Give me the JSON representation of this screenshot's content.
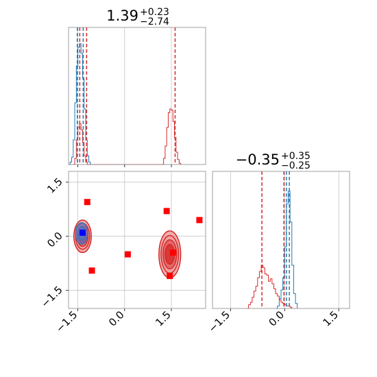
{
  "figure": {
    "type": "corner-plot",
    "colors": {
      "red": "#d62728",
      "blue": "#1f77b4",
      "marker_red": "#ff0000",
      "marker_blue": "#0000ff",
      "contour_fill_outer": "#f0a0a0",
      "contour_fill_mid": "#e06060",
      "contour_fill_inner": "#d83030",
      "blue_fill": "#6070c0",
      "grid": "#b0b0b0"
    }
  },
  "chart_data": [
    {
      "panel": "top-left",
      "type": "histogram",
      "title": {
        "value": "1.39",
        "upper": "+0.23",
        "lower": "−2.74"
      },
      "xlim": [
        -1.8,
        2.6
      ],
      "ticks": [
        -1.5,
        0.0,
        1.5
      ],
      "grid": true,
      "series": [
        {
          "color": "#1f77b4",
          "points": [
            [
              -1.8,
              0
            ],
            [
              -1.75,
              0.02
            ],
            [
              -1.7,
              0.06
            ],
            [
              -1.65,
              0.2
            ],
            [
              -1.6,
              0.5
            ],
            [
              -1.55,
              0.8
            ],
            [
              -1.5,
              0.95
            ],
            [
              -1.45,
              0.98
            ],
            [
              -1.4,
              0.9
            ],
            [
              -1.35,
              0.7
            ],
            [
              -1.3,
              0.45
            ],
            [
              -1.25,
              0.2
            ],
            [
              -1.2,
              0.07
            ],
            [
              -1.15,
              0.02
            ],
            [
              -1.1,
              0
            ]
          ]
        },
        {
          "color": "#d62728",
          "points": [
            [
              -1.65,
              0
            ],
            [
              -1.6,
              0.05
            ],
            [
              -1.55,
              0.2
            ],
            [
              -1.5,
              0.3
            ],
            [
              -1.45,
              0.33
            ],
            [
              -1.4,
              0.28
            ],
            [
              -1.35,
              0.18
            ],
            [
              -1.3,
              0.07
            ],
            [
              -1.25,
              0.02
            ],
            [
              -1.2,
              0
            ],
            [
              1.2,
              0
            ],
            [
              1.25,
              0.05
            ],
            [
              1.3,
              0.15
            ],
            [
              1.35,
              0.3
            ],
            [
              1.4,
              0.42
            ],
            [
              1.45,
              0.45
            ],
            [
              1.5,
              0.44
            ],
            [
              1.55,
              0.35
            ],
            [
              1.6,
              0.22
            ],
            [
              1.65,
              0.1
            ],
            [
              1.7,
              0.04
            ],
            [
              1.75,
              0.01
            ],
            [
              1.8,
              0
            ]
          ]
        }
      ],
      "vlines": [
        {
          "x": -1.52,
          "color": "#1f77b4"
        },
        {
          "x": -1.33,
          "color": "#1f77b4"
        },
        {
          "x": -1.44,
          "color": "#d62728"
        },
        {
          "x": -1.22,
          "color": "#d62728"
        },
        {
          "x": 1.62,
          "color": "#d62728"
        }
      ]
    },
    {
      "panel": "bottom-left",
      "type": "scatter",
      "xlim": [
        -1.8,
        2.6
      ],
      "ylim": [
        -2.0,
        1.8
      ],
      "xticks": [
        -1.5,
        0.0,
        1.5
      ],
      "yticks": [
        1.5,
        0.0,
        -1.5
      ],
      "grid": true,
      "contours": [
        {
          "cx": -1.35,
          "cy": 0.0,
          "rx": 0.28,
          "ry": 0.45,
          "color": "#d62728"
        },
        {
          "cx": 1.45,
          "cy": -0.5,
          "rx": 0.35,
          "ry": 0.65,
          "color": "#d62728"
        },
        {
          "cx": -1.38,
          "cy": 0.08,
          "rx": 0.2,
          "ry": 0.3,
          "color": "#1f77b4"
        }
      ],
      "markers": [
        {
          "x": -1.2,
          "y": 0.95,
          "color": "#ff0000"
        },
        {
          "x": -1.05,
          "y": -0.95,
          "color": "#ff0000"
        },
        {
          "x": 0.1,
          "y": -0.5,
          "color": "#ff0000"
        },
        {
          "x": 1.35,
          "y": 0.7,
          "color": "#ff0000"
        },
        {
          "x": 1.45,
          "y": -1.1,
          "color": "#ff0000"
        },
        {
          "x": 1.55,
          "y": -0.45,
          "color": "#ff0000"
        },
        {
          "x": 2.4,
          "y": 0.45,
          "color": "#ff0000"
        },
        {
          "x": -1.35,
          "y": 0.1,
          "color": "#0000ff"
        }
      ]
    },
    {
      "panel": "bottom-right",
      "type": "histogram",
      "title": {
        "value": "−0.35",
        "upper": "+0.35",
        "lower": "−0.25"
      },
      "xlim": [
        -2.0,
        1.8
      ],
      "ticks": [
        -1.5,
        0.0,
        1.5
      ],
      "grid": true,
      "series": [
        {
          "color": "#1f77b4",
          "points": [
            [
              -0.25,
              0
            ],
            [
              -0.2,
              0.02
            ],
            [
              -0.15,
              0.08
            ],
            [
              -0.1,
              0.15
            ],
            [
              -0.05,
              0.25
            ],
            [
              0.0,
              0.5
            ],
            [
              0.05,
              0.85
            ],
            [
              0.1,
              0.95
            ],
            [
              0.15,
              0.7
            ],
            [
              0.2,
              0.35
            ],
            [
              0.25,
              0.12
            ],
            [
              0.3,
              0.04
            ],
            [
              0.35,
              0
            ]
          ]
        },
        {
          "color": "#d62728",
          "points": [
            [
              -1.05,
              0
            ],
            [
              -1.0,
              0.03
            ],
            [
              -0.95,
              0.05
            ],
            [
              -0.9,
              0.09
            ],
            [
              -0.85,
              0.14
            ],
            [
              -0.8,
              0.18
            ],
            [
              -0.75,
              0.25
            ],
            [
              -0.7,
              0.3
            ],
            [
              -0.65,
              0.35
            ],
            [
              -0.6,
              0.33
            ],
            [
              -0.55,
              0.28
            ],
            [
              -0.5,
              0.27
            ],
            [
              -0.45,
              0.22
            ],
            [
              -0.4,
              0.24
            ],
            [
              -0.35,
              0.2
            ],
            [
              -0.3,
              0.16
            ],
            [
              -0.25,
              0.12
            ],
            [
              -0.2,
              0.1
            ],
            [
              -0.15,
              0.07
            ],
            [
              -0.1,
              0.05
            ],
            [
              -0.05,
              0.04
            ],
            [
              0.0,
              0.03
            ],
            [
              0.05,
              0.02
            ],
            [
              0.1,
              0.02
            ],
            [
              0.15,
              0.01
            ],
            [
              0.2,
              0
            ]
          ]
        }
      ],
      "vlines": [
        {
          "x": -0.63,
          "color": "#d62728"
        },
        {
          "x": -0.02,
          "color": "#d62728"
        },
        {
          "x": 0.05,
          "color": "#1f77b4"
        },
        {
          "x": 0.13,
          "color": "#1f77b4"
        }
      ]
    }
  ]
}
